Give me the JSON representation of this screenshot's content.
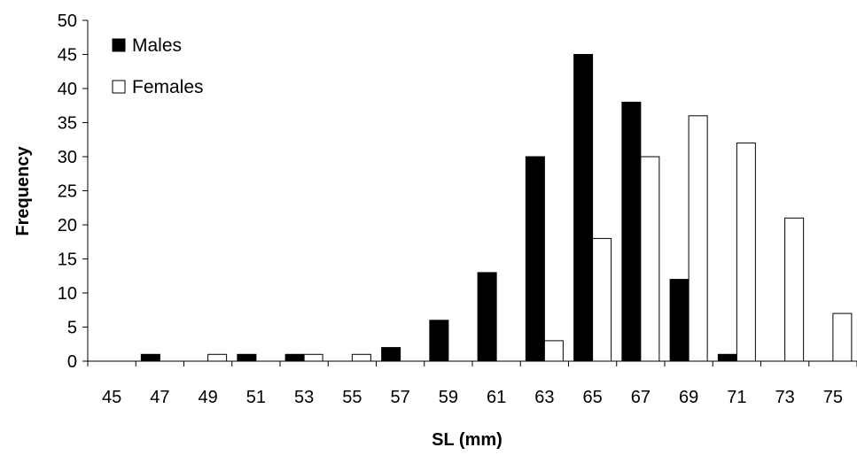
{
  "chart_data": {
    "type": "bar",
    "title": "",
    "xlabel": "SL (mm)",
    "ylabel": "Frequency",
    "categories": [
      "45",
      "47",
      "49",
      "51",
      "53",
      "55",
      "57",
      "59",
      "61",
      "63",
      "65",
      "67",
      "69",
      "71",
      "73",
      "75"
    ],
    "ylim": [
      0,
      50
    ],
    "yticks": [
      0,
      5,
      10,
      15,
      20,
      25,
      30,
      35,
      40,
      45,
      50
    ],
    "grid": false,
    "legend": "top-left",
    "series": [
      {
        "name": "Males",
        "color": "#000000",
        "values": [
          0,
          1,
          0,
          1,
          1,
          0,
          2,
          6,
          13,
          30,
          45,
          38,
          12,
          1,
          0,
          0
        ]
      },
      {
        "name": "Females",
        "color": "#ffffff",
        "values": [
          0,
          0,
          1,
          0,
          1,
          1,
          0,
          0,
          0,
          3,
          18,
          30,
          36,
          32,
          21,
          7
        ]
      }
    ]
  }
}
